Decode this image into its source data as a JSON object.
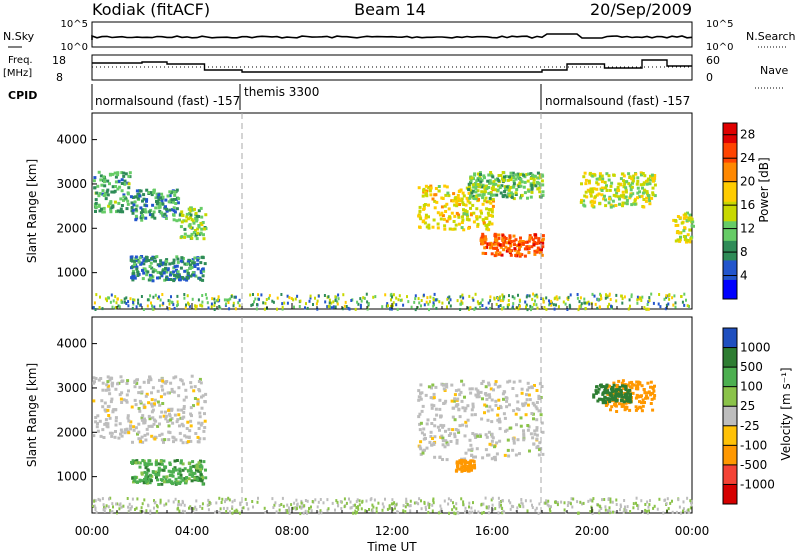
{
  "header": {
    "station": "Kodiak (fitACF)",
    "beam": "Beam 14",
    "date": "20/Sep/2009"
  },
  "top_panels": {
    "nsky_label": "N.Sky",
    "nsearch_label": "N.Search",
    "left_ticks": [
      "10^5",
      "10^0"
    ],
    "right_ticks": [
      "10^5",
      "10^0"
    ],
    "freq_label_1": "Freq.",
    "freq_label_2": "[MHz]",
    "freq_ticks": [
      "18",
      "8"
    ],
    "nave_label": "Nave",
    "nave_ticks": [
      "60",
      "0"
    ],
    "cpid_label": "CPID",
    "cpid_segments": [
      {
        "label": "normalsound (fast) -157",
        "start_hour": 0,
        "end_hour": 6
      },
      {
        "label": "themis 3300",
        "start_hour": 6,
        "end_hour": 18
      },
      {
        "label": "normalsound (fast) -157",
        "start_hour": 18,
        "end_hour": 24
      }
    ]
  },
  "chart_data": [
    {
      "type": "heatmap",
      "name": "power",
      "ylabel": "Slant Range [km]",
      "yticks": [
        "1000",
        "2000",
        "3000",
        "4000"
      ],
      "ylim": [
        180,
        4600
      ],
      "xlim": [
        0,
        24
      ],
      "colorbar": {
        "label": "Power [dB]",
        "ticks": [
          "4",
          "8",
          "12",
          "16",
          "20",
          "24",
          "28"
        ],
        "range": [
          0,
          30
        ],
        "colors": [
          "#0000ff",
          "#2255cc",
          "#2e8b57",
          "#66cc66",
          "#c8d800",
          "#ffcc00",
          "#ff8800",
          "#ff4400",
          "#e00000"
        ]
      },
      "echo_regions": [
        {
          "hours": [
            0.0,
            1.5
          ],
          "range_km": [
            2400,
            3300
          ],
          "db": 10
        },
        {
          "hours": [
            1.5,
            3.5
          ],
          "range_km": [
            2200,
            2900
          ],
          "db": 9
        },
        {
          "hours": [
            3.5,
            4.5
          ],
          "range_km": [
            1800,
            2500
          ],
          "db": 13
        },
        {
          "hours": [
            1.5,
            4.5
          ],
          "range_km": [
            850,
            1400
          ],
          "db": 8
        },
        {
          "hours": [
            13.0,
            16.0
          ],
          "range_km": [
            2000,
            3000
          ],
          "db": 17
        },
        {
          "hours": [
            15.5,
            18.0
          ],
          "range_km": [
            1400,
            1900
          ],
          "db": 24
        },
        {
          "hours": [
            15.0,
            18.0
          ],
          "range_km": [
            2700,
            3300
          ],
          "db": 12
        },
        {
          "hours": [
            19.5,
            22.5
          ],
          "range_km": [
            2500,
            3300
          ],
          "db": 15
        },
        {
          "hours": [
            23.2,
            24.0
          ],
          "range_km": [
            1700,
            2400
          ],
          "db": 16
        }
      ]
    },
    {
      "type": "heatmap",
      "name": "velocity",
      "ylabel": "Slant Range [km]",
      "yticks": [
        "1000",
        "2000",
        "3000",
        "4000"
      ],
      "ylim": [
        180,
        4600
      ],
      "xlim": [
        0,
        24
      ],
      "colorbar": {
        "label": "Velocity [m s⁻¹]",
        "ticks": [
          "1000",
          "500",
          "100",
          "25",
          "-25",
          "-100",
          "-500",
          "-1000"
        ],
        "colors": [
          "#1f4fbf",
          "#2e7d32",
          "#4caf50",
          "#8bc34a",
          "#bdbdbd",
          "#ffc107",
          "#ff9800",
          "#f44336",
          "#d50000"
        ]
      },
      "echo_regions": [
        {
          "hours": [
            0.0,
            4.5
          ],
          "range_km": [
            1800,
            3300
          ],
          "velocity": 0
        },
        {
          "hours": [
            1.5,
            4.5
          ],
          "range_km": [
            850,
            1400
          ],
          "velocity": 80
        },
        {
          "hours": [
            13.0,
            18.0
          ],
          "range_km": [
            1400,
            3200
          ],
          "velocity": 0
        },
        {
          "hours": [
            14.5,
            15.3
          ],
          "range_km": [
            1150,
            1400
          ],
          "velocity": -200
        },
        {
          "hours": [
            20.5,
            22.5
          ],
          "range_km": [
            2500,
            3200
          ],
          "velocity": -300
        },
        {
          "hours": [
            20.0,
            21.5
          ],
          "range_km": [
            2700,
            3100
          ],
          "velocity": 400
        }
      ]
    }
  ],
  "xaxis": {
    "ticks": [
      "00:00",
      "04:00",
      "08:00",
      "12:00",
      "16:00",
      "20:00",
      "00:00"
    ],
    "label": "Time UT"
  },
  "colors": {
    "frame": "#000000",
    "divider": "#aaaaaa"
  }
}
